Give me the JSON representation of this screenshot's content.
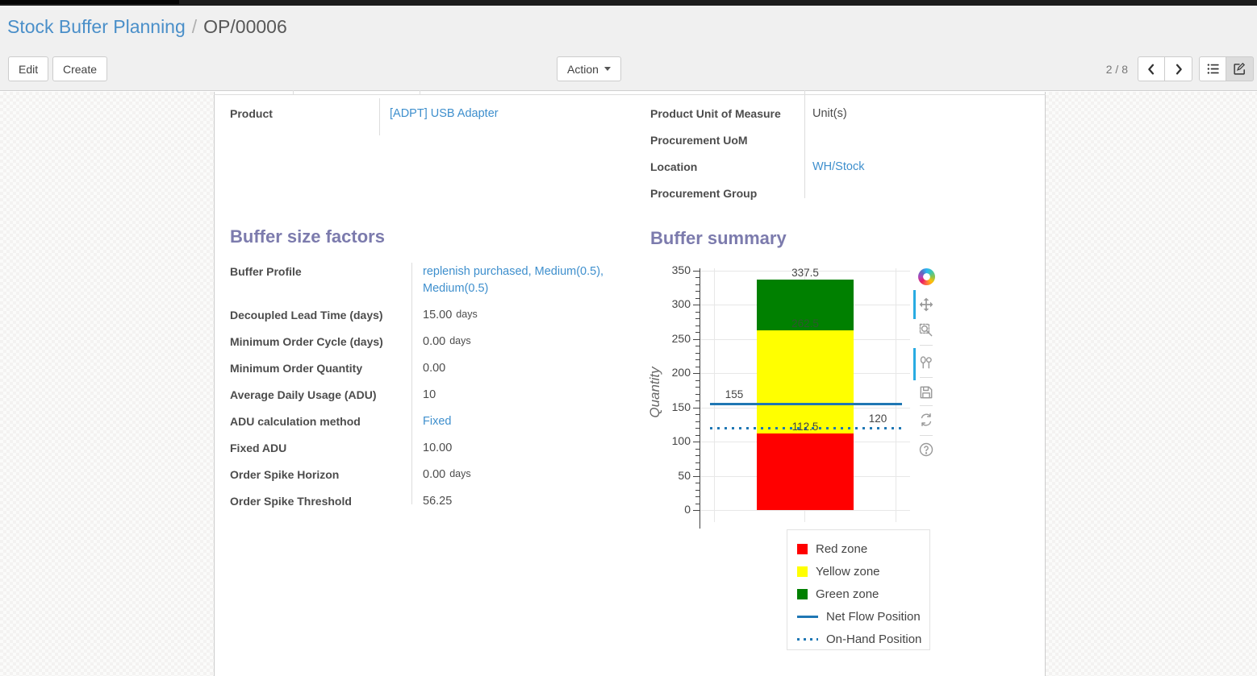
{
  "breadcrumb": {
    "parent": "Stock Buffer Planning",
    "separator": "/",
    "current": "OP/00006"
  },
  "toolbar": {
    "edit_label": "Edit",
    "create_label": "Create",
    "action_label": "Action",
    "pager": "2 / 8"
  },
  "sheet": {
    "product_group": {
      "rows": [
        {
          "label": "Product",
          "value": "[ADPT] USB Adapter",
          "is_link": true
        }
      ]
    },
    "info_group": {
      "rows": [
        {
          "label": "Product Unit of Measure",
          "value": "Unit(s)",
          "is_link": false
        },
        {
          "label": "Procurement UoM",
          "value": "",
          "is_link": false
        },
        {
          "label": "Location",
          "value": "WH/Stock",
          "is_link": true
        },
        {
          "label": "Procurement Group",
          "value": "",
          "is_link": false
        }
      ]
    },
    "buffer_factors": {
      "title": "Buffer size factors",
      "rows": [
        {
          "label": "Buffer Profile",
          "value": "replenish purchased, Medium(0.5), Medium(0.5)",
          "is_link": true
        },
        {
          "label": "Decoupled Lead Time (days)",
          "value": "15.00",
          "unit": "days"
        },
        {
          "label": "Minimum Order Cycle (days)",
          "value": "0.00",
          "unit": "days"
        },
        {
          "label": "Minimum Order Quantity",
          "value": "0.00"
        },
        {
          "label": "Average Daily Usage (ADU)",
          "value": "10"
        },
        {
          "label": "ADU calculation method",
          "value": "Fixed",
          "is_link": true
        },
        {
          "label": "Fixed ADU",
          "value": "10.00"
        },
        {
          "label": "Order Spike Horizon",
          "value": "0.00",
          "unit": "days"
        },
        {
          "label": "Order Spike Threshold",
          "value": "56.25"
        }
      ]
    },
    "buffer_summary_title": "Buffer summary"
  },
  "chart_data": {
    "type": "bar",
    "title": "Buffer summary",
    "ylabel": "Quantity",
    "ylim": [
      0,
      350
    ],
    "y_major_ticks": [
      0,
      50,
      100,
      150,
      200,
      250,
      300,
      350
    ],
    "y_minor_step": 10,
    "grid": true,
    "zones": [
      {
        "name": "Red zone",
        "from": 0,
        "to": 112.5,
        "color": "#ff0000"
      },
      {
        "name": "Yellow zone",
        "from": 112.5,
        "to": 262.5,
        "color": "#ffff00"
      },
      {
        "name": "Green zone",
        "from": 262.5,
        "to": 337.5,
        "color": "#008000"
      }
    ],
    "bar_labels": [
      {
        "text": "337.5",
        "value": 337.5,
        "placement": "above"
      },
      {
        "text": "262.5",
        "value": 262.5,
        "placement": "on",
        "muted": true
      },
      {
        "text": "112.5",
        "value": 112.5,
        "placement": "on"
      }
    ],
    "lines": [
      {
        "name": "Net Flow Position",
        "value": 155,
        "style": "solid",
        "color": "#1f77b4",
        "label": "155",
        "label_side": "left"
      },
      {
        "name": "On-Hand Position",
        "value": 120,
        "style": "dotted",
        "color": "#1f77b4",
        "label": "120",
        "label_side": "right"
      }
    ],
    "legend": [
      {
        "label": "Red zone",
        "swatch": "square",
        "color": "#ff0000"
      },
      {
        "label": "Yellow zone",
        "swatch": "square",
        "color": "#ffff00"
      },
      {
        "label": "Green zone",
        "swatch": "square",
        "color": "#008000"
      },
      {
        "label": "Net Flow Position",
        "swatch": "line",
        "color": "#1f77b4"
      },
      {
        "label": "On-Hand Position",
        "swatch": "dotted",
        "color": "#1f77b4"
      }
    ],
    "legend_position": "bottom-right",
    "modebar_icons": [
      "plotly-logo-icon",
      "pan-icon",
      "zoom-icon",
      "compare-hover-icon",
      "save-image-icon",
      "reset-axes-icon",
      "help-icon"
    ]
  },
  "colors": {
    "accent": "#7c7bad",
    "link": "#3e8fcd",
    "flow_line": "#1f77b4"
  }
}
